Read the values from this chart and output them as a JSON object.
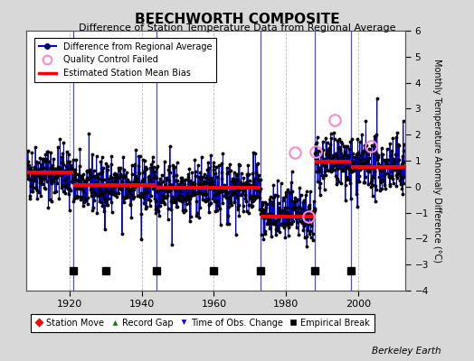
{
  "title": "BEECHWORTH COMPOSITE",
  "subtitle": "Difference of Station Temperature Data from Regional Average",
  "ylabel_right": "Monthly Temperature Anomaly Difference (°C)",
  "ylim": [
    -4,
    6
  ],
  "xlim": [
    1908,
    2013
  ],
  "xticks": [
    1920,
    1940,
    1960,
    1980,
    2000
  ],
  "yticks": [
    -4,
    -3,
    -2,
    -1,
    0,
    1,
    2,
    3,
    4,
    5,
    6
  ],
  "background_color": "#d8d8d8",
  "plot_bg_color": "#ffffff",
  "grid_color": "#bbbbbb",
  "line_color": "#0000cc",
  "marker_color": "#000000",
  "bias_color": "#ff0000",
  "qc_color": "#ff88cc",
  "segments": [
    {
      "x_start": 1908,
      "x_end": 1921,
      "bias": 0.55
    },
    {
      "x_start": 1921,
      "x_end": 1944,
      "bias": 0.05
    },
    {
      "x_start": 1944,
      "x_end": 1973,
      "bias": -0.05
    },
    {
      "x_start": 1973,
      "x_end": 1988,
      "bias": -1.15
    },
    {
      "x_start": 1988,
      "x_end": 1998,
      "bias": 0.95
    },
    {
      "x_start": 1998,
      "x_end": 2013,
      "bias": 0.75
    }
  ],
  "empirical_breaks_x": [
    1921,
    1930,
    1944,
    1960,
    1973,
    1988,
    1998
  ],
  "empirical_breaks_y": -3.25,
  "gap_verticals": [
    1921,
    1944,
    1973,
    1988,
    1998
  ],
  "qc_times": [
    1982.5,
    1986.3,
    1988.2,
    1993.5,
    2003.5
  ],
  "qc_vals": [
    1.3,
    -1.15,
    1.35,
    2.55,
    1.55
  ],
  "berkeley_earth_text": "Berkeley Earth",
  "noise_std": 0.52,
  "random_seed": 42
}
